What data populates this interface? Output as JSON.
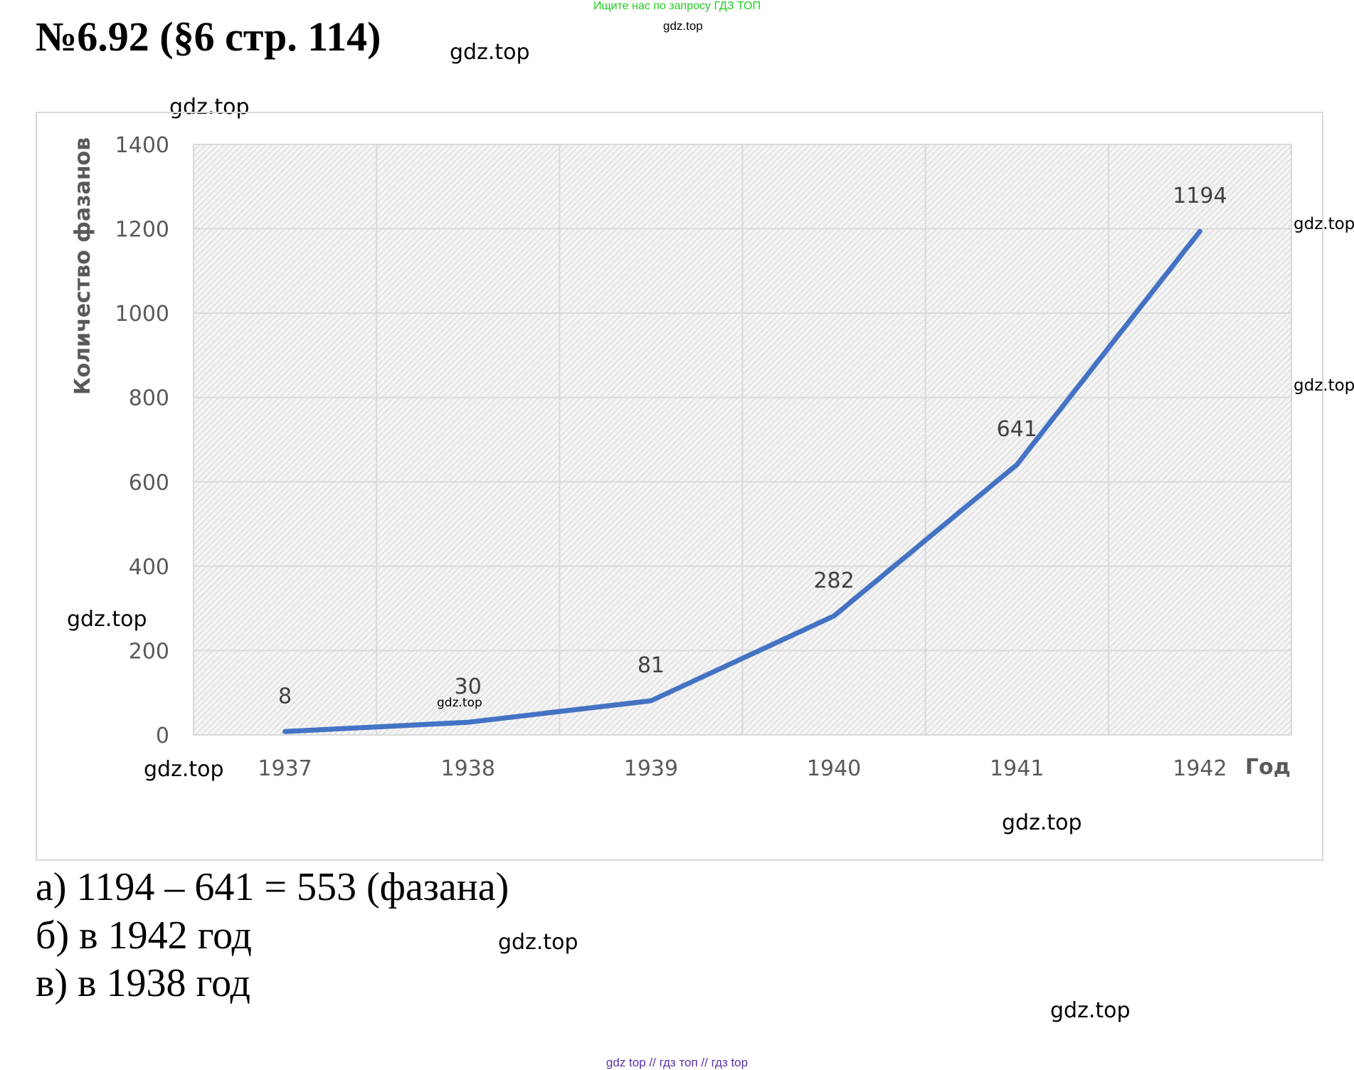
{
  "header": {
    "title": "№6.92 (§6 стр. 114)",
    "promo": "Ищите нас по запросу ГДЗ ТОП",
    "promo_sub": "gdz.top"
  },
  "watermarks": [
    "gdz.top",
    "gdz.top",
    "gdz.top",
    "gdz.top",
    "gdz.top",
    "gdz.top",
    "gdz.top",
    "gdz.top",
    "gdz.top",
    "gdz.top"
  ],
  "chart_data": {
    "type": "line",
    "categories": [
      "1937",
      "1938",
      "1939",
      "1940",
      "1941",
      "1942"
    ],
    "series": [
      {
        "values": [
          8,
          30,
          81,
          282,
          641,
          1194
        ],
        "color": "#4472c4"
      }
    ],
    "data_labels": [
      "8",
      "30",
      "81",
      "282",
      "641",
      "1194"
    ],
    "ylabel": "Количество фазанов",
    "xlabel": "Год",
    "ylim": [
      0,
      1400
    ],
    "yticks": [
      "0",
      "200",
      "400",
      "600",
      "800",
      "1000",
      "1200",
      "1400"
    ],
    "grid": true,
    "background": "hatched"
  },
  "answers": {
    "a": "а) 1194 – 641 = 553 (фазана)",
    "b": "б) в 1942 год",
    "c": "в) в 1938 год"
  },
  "footer": "gdz top  //  гдз топ  //  гдз top"
}
